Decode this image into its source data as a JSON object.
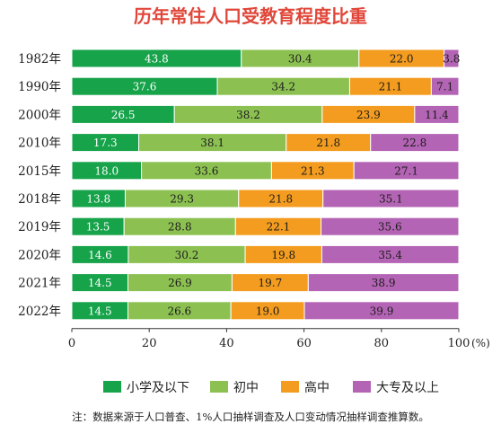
{
  "chart_data": {
    "type": "bar",
    "orientation": "horizontal",
    "stacked": true,
    "title": "历年常住人口受教育程度比重",
    "categories": [
      "1982年",
      "1990年",
      "2000年",
      "2010年",
      "2015年",
      "2018年",
      "2019年",
      "2020年",
      "2021年",
      "2022年"
    ],
    "series": [
      {
        "name": "小学及以下",
        "color": "#16a34a",
        "values": [
          43.8,
          37.6,
          26.5,
          17.3,
          18.0,
          13.8,
          13.5,
          14.6,
          14.5,
          14.5
        ]
      },
      {
        "name": "初中",
        "color": "#8cc152",
        "values": [
          30.4,
          34.2,
          38.2,
          38.1,
          33.6,
          29.3,
          28.8,
          30.2,
          26.9,
          26.6
        ]
      },
      {
        "name": "高中",
        "color": "#f39c1f",
        "values": [
          22.0,
          21.1,
          23.9,
          21.8,
          21.3,
          21.8,
          22.1,
          19.8,
          19.7,
          19.0
        ]
      },
      {
        "name": "大专及以上",
        "color": "#b464b4",
        "values": [
          3.8,
          7.1,
          11.4,
          22.8,
          27.1,
          35.1,
          35.6,
          35.4,
          38.9,
          39.9
        ]
      }
    ],
    "value_labels": [
      [
        "43.8",
        "30.4",
        "22.0",
        "3.8"
      ],
      [
        "37.6",
        "34.2",
        "21.1",
        "7.1"
      ],
      [
        "26.5",
        "38.2",
        "23.9",
        "11.4"
      ],
      [
        "17.3",
        "38.1",
        "21.8",
        "22.8"
      ],
      [
        "18.0",
        "33.6",
        "21.3",
        "27.1"
      ],
      [
        "13.8",
        "29.3",
        "21.8",
        "35.1"
      ],
      [
        "13.5",
        "28.8",
        "22.1",
        "35.6"
      ],
      [
        "14.6",
        "30.2",
        "19.8",
        "35.4"
      ],
      [
        "14.5",
        "26.9",
        "19.7",
        "38.9"
      ],
      [
        "14.5",
        "26.6",
        "19.0",
        "39.9"
      ]
    ],
    "xlim": [
      0,
      100
    ],
    "xticks": [
      "0",
      "20",
      "40",
      "60",
      "80",
      "100"
    ],
    "xunit": "(%)",
    "grid": false,
    "legend_position": "bottom",
    "note": "注：数据来源于人口普查、1%人口抽样调查及人口变动情况抽样调查推算数。"
  }
}
